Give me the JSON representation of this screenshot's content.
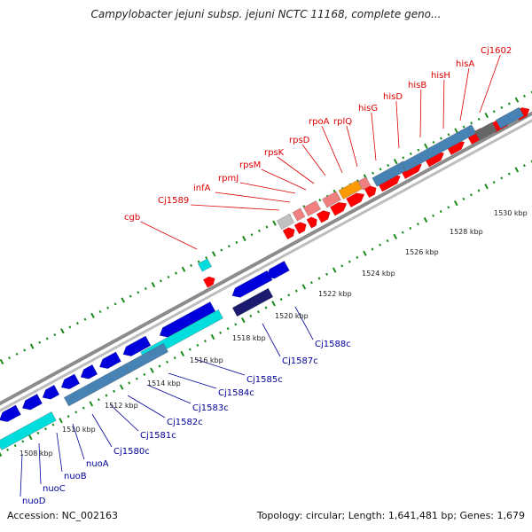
{
  "title": "Campylobacter jejuni subsp. jejuni NCTC 11168, complete geno...",
  "footer": {
    "accession": "Accession: NC_002163",
    "info": "Topology: circular; Length: 1,641,481 bp; Genes: 1,679"
  },
  "colors": {
    "forward_label": "#dd0000",
    "reverse_label": "#000099",
    "tick": "#1a8a1a",
    "backbone": "#999999",
    "forward_gene": "#ff0000",
    "reverse_gene": "#0000dd",
    "feature_blue": "#4682b4",
    "feature_cyan": "#00dddd",
    "feature_orange": "#ff9900",
    "feature_pink": "#f08080",
    "feature_gray": "#c0c0c0",
    "feature_dark": "#1a1a6e"
  },
  "scale_labels": [
    "1508 kbp",
    "1510 kbp",
    "1512 kbp",
    "1514 kbp",
    "1516 kbp",
    "1518 kbp",
    "1520 kbp",
    "1522 kbp",
    "1524 kbp",
    "1526 kbp",
    "1528 kbp",
    "1530 kbp"
  ],
  "forward_genes": [
    "cgb",
    "Cj1589",
    "infA",
    "rpmJ",
    "rpsM",
    "rpsK",
    "rpsD",
    "rpoA",
    "rplQ",
    "hisG",
    "hisD",
    "hisB",
    "hisH",
    "hisA",
    "Cj1602"
  ],
  "reverse_genes": [
    "nuoD",
    "nuoC",
    "nuoB",
    "nuoA",
    "Cj1580c",
    "Cj1581c",
    "Cj1582c",
    "Cj1583c",
    "Cj1584c",
    "Cj1585c",
    "Cj1587c",
    "Cj1588c"
  ]
}
